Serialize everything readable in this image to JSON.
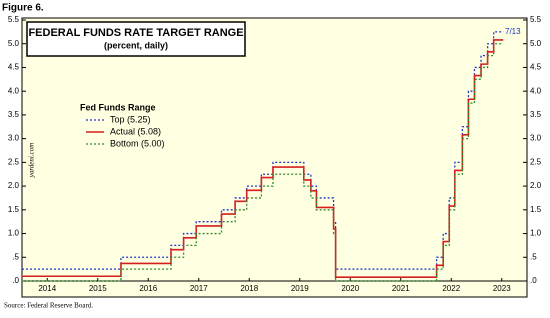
{
  "figure_label": "Figure 6.",
  "source": "Source: Federal Reserve Board.",
  "watermark": "yardeni.com",
  "chart_data": {
    "type": "line",
    "title": "FEDERAL FUNDS RATE TARGET RANGE",
    "subtitle": "(percent, daily)",
    "legend_title": "Fed Funds Range",
    "annotation": "7/13",
    "xlim": [
      2014,
      2024
    ],
    "ylim": [
      0,
      5.5
    ],
    "xticks": [
      {
        "value": 2014.5,
        "label": "2014"
      },
      {
        "value": 2015.5,
        "label": "2015"
      },
      {
        "value": 2016.5,
        "label": "2016"
      },
      {
        "value": 2017.5,
        "label": "2017"
      },
      {
        "value": 2018.5,
        "label": "2018"
      },
      {
        "value": 2019.5,
        "label": "2019"
      },
      {
        "value": 2020.5,
        "label": "2020"
      },
      {
        "value": 2021.5,
        "label": "2021"
      },
      {
        "value": 2022.5,
        "label": "2022"
      },
      {
        "value": 2023.5,
        "label": "2023"
      }
    ],
    "yticks": [
      {
        "value": 0,
        "label": ".0"
      },
      {
        "value": 0.5,
        "label": ".5"
      },
      {
        "value": 1,
        "label": "1.0"
      },
      {
        "value": 1.5,
        "label": "1.5"
      },
      {
        "value": 2,
        "label": "2.0"
      },
      {
        "value": 2.5,
        "label": "2.5"
      },
      {
        "value": 3,
        "label": "3.0"
      },
      {
        "value": 3.5,
        "label": "3.5"
      },
      {
        "value": 4,
        "label": "4.0"
      },
      {
        "value": 4.5,
        "label": "4.5"
      },
      {
        "value": 5,
        "label": "5.0"
      },
      {
        "value": 5.5,
        "label": "5.5"
      }
    ],
    "grid": false,
    "x": [
      2014,
      2015.96,
      2015.96,
      2016.95,
      2016.95,
      2017.2,
      2017.2,
      2017.45,
      2017.45,
      2017.95,
      2017.95,
      2018.22,
      2018.22,
      2018.45,
      2018.45,
      2018.74,
      2018.74,
      2018.97,
      2018.97,
      2019.58,
      2019.58,
      2019.72,
      2019.72,
      2019.83,
      2019.83,
      2020.17,
      2020.17,
      2020.21,
      2020.21,
      2022.21,
      2022.21,
      2022.34,
      2022.34,
      2022.46,
      2022.46,
      2022.57,
      2022.57,
      2022.72,
      2022.72,
      2022.84,
      2022.84,
      2022.96,
      2022.96,
      2023.09,
      2023.09,
      2023.22,
      2023.22,
      2023.34,
      2023.34,
      2023.53
    ],
    "series": [
      {
        "name": "Top (5.25)",
        "color": "#1f35c8",
        "dash": "2,2",
        "values": [
          0.25,
          0.25,
          0.5,
          0.5,
          0.75,
          0.75,
          1,
          1,
          1.25,
          1.25,
          1.5,
          1.5,
          1.75,
          1.75,
          2,
          2,
          2.25,
          2.25,
          2.5,
          2.5,
          2.25,
          2.25,
          2,
          2,
          1.75,
          1.75,
          1.25,
          1.25,
          0.25,
          0.25,
          0.5,
          0.5,
          1,
          1,
          1.75,
          1.75,
          2.5,
          2.5,
          3.25,
          3.25,
          4,
          4,
          4.5,
          4.5,
          4.75,
          4.75,
          5,
          5,
          5.25,
          5.25
        ]
      },
      {
        "name": "Actual (5.08)",
        "color": "#d61f1f",
        "dash": "",
        "values": [
          0.1,
          0.1,
          0.37,
          0.37,
          0.66,
          0.66,
          0.91,
          0.91,
          1.16,
          1.16,
          1.41,
          1.41,
          1.68,
          1.68,
          1.91,
          1.91,
          2.18,
          2.18,
          2.4,
          2.4,
          2.13,
          2.13,
          1.9,
          1.9,
          1.55,
          1.55,
          1.1,
          1.1,
          0.08,
          0.08,
          0.33,
          0.33,
          0.83,
          0.83,
          1.58,
          1.58,
          2.33,
          2.33,
          3.08,
          3.08,
          3.83,
          3.83,
          4.33,
          4.33,
          4.57,
          4.57,
          4.83,
          4.83,
          5.08,
          5.08
        ]
      },
      {
        "name": "Bottom (5.00)",
        "color": "#2e8b2e",
        "dash": "2,2",
        "values": [
          0,
          0,
          0.25,
          0.25,
          0.5,
          0.5,
          0.75,
          0.75,
          1,
          1,
          1.25,
          1.25,
          1.5,
          1.5,
          1.75,
          1.75,
          2,
          2,
          2.25,
          2.25,
          2,
          2,
          1.75,
          1.75,
          1.5,
          1.5,
          1,
          1,
          0,
          0,
          0.25,
          0.25,
          0.75,
          0.75,
          1.5,
          1.5,
          2.25,
          2.25,
          3,
          3,
          3.75,
          3.75,
          4.25,
          4.25,
          4.5,
          4.5,
          4.75,
          4.75,
          5,
          5
        ]
      }
    ]
  }
}
